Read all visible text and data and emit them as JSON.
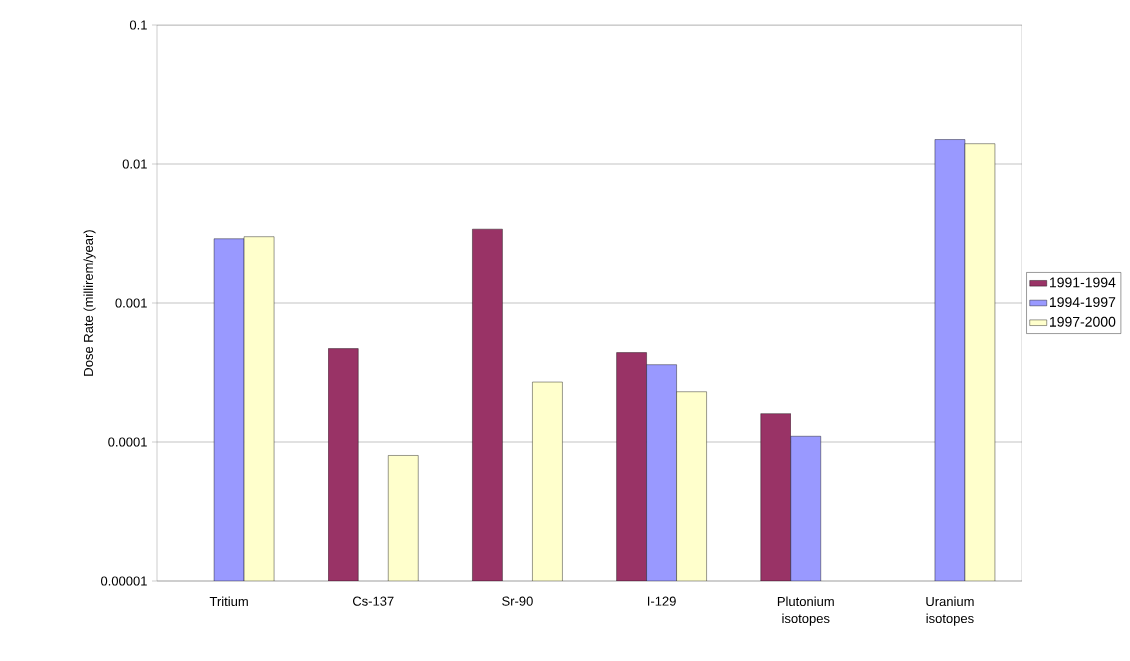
{
  "chart_data": {
    "type": "bar",
    "ylabel": "Dose Rate (millirem/year)",
    "log": "y",
    "categories": [
      "Tritium",
      "Cs-137",
      "Sr-90",
      "I-129",
      "Plutonium isotopes",
      "Uranium isotopes"
    ],
    "series": [
      {
        "name": "1991-1994",
        "color": "#993366",
        "values": [
          null,
          0.00047,
          0.0034,
          0.00044,
          0.00016,
          null
        ]
      },
      {
        "name": "1994-1997",
        "color": "#9999ff",
        "values": [
          0.0029,
          null,
          null,
          0.00036,
          0.00011,
          0.015
        ]
      },
      {
        "name": "1997-2000",
        "color": "#ffffcc",
        "values": [
          0.003,
          8e-05,
          0.00027,
          0.00023,
          null,
          0.014
        ]
      }
    ],
    "ylim": [
      1e-05,
      0.1
    ],
    "yticks": [
      {
        "value": 1e-05,
        "label": "0.00001"
      },
      {
        "value": 0.0001,
        "label": "0.0001"
      },
      {
        "value": 0.001,
        "label": "0.001"
      },
      {
        "value": 0.01,
        "label": "0.01"
      },
      {
        "value": 0.1,
        "label": "0.1"
      }
    ],
    "grid": "y",
    "legend": "right"
  }
}
